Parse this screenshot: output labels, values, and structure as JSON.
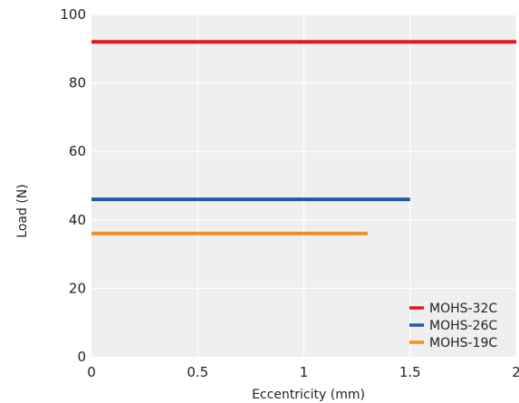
{
  "chart_data": {
    "type": "line",
    "title": "",
    "xlabel": "Eccentricity (mm)",
    "ylabel": "Load (N)",
    "xlim": [
      0,
      2
    ],
    "ylim": [
      0,
      100
    ],
    "x_ticks": [
      0,
      0.5,
      1,
      1.5,
      2
    ],
    "x_tick_labels": [
      "0",
      "0.5",
      "1",
      "1.5",
      "2"
    ],
    "y_ticks": [
      0,
      20,
      40,
      60,
      80,
      100
    ],
    "y_tick_labels": [
      "0",
      "20",
      "40",
      "60",
      "80",
      "100"
    ],
    "grid": true,
    "legend_position": "bottom-right",
    "series": [
      {
        "name": "MOHS-32C",
        "color": "#e8141c",
        "x": [
          0,
          2
        ],
        "y": [
          92,
          92
        ]
      },
      {
        "name": "MOHS-26C",
        "color": "#1b5ea8",
        "x": [
          0,
          1.5
        ],
        "y": [
          46,
          46
        ]
      },
      {
        "name": "MOHS-19C",
        "color": "#f0901e",
        "x": [
          0,
          1.3
        ],
        "y": [
          36,
          36
        ]
      }
    ]
  },
  "colors": {
    "plot_background": "#efefef",
    "grid": "#ffffff"
  }
}
